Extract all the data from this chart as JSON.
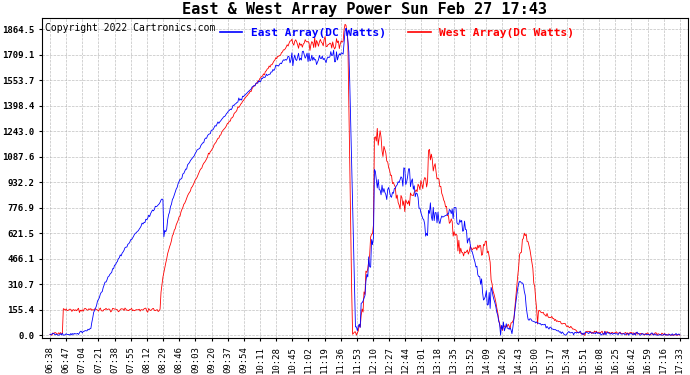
{
  "title": "East & West Array Power Sun Feb 27 17:43",
  "copyright": "Copyright 2022 Cartronics.com",
  "legend_east": "East Array(DC Watts)",
  "legend_west": "West Array(DC Watts)",
  "east_color": "blue",
  "west_color": "red",
  "background_color": "#ffffff",
  "grid_color": "#b0b0b0",
  "yticks": [
    0.0,
    155.4,
    310.7,
    466.1,
    621.5,
    776.9,
    932.2,
    1087.6,
    1243.0,
    1398.4,
    1553.7,
    1709.1,
    1864.5
  ],
  "ylim": [
    -20,
    1930
  ],
  "x_labels": [
    "06:38",
    "06:47",
    "07:04",
    "07:21",
    "07:38",
    "07:55",
    "08:12",
    "08:29",
    "08:46",
    "09:03",
    "09:20",
    "09:37",
    "09:54",
    "10:11",
    "10:28",
    "10:45",
    "11:02",
    "11:19",
    "11:36",
    "11:53",
    "12:10",
    "12:27",
    "12:44",
    "13:01",
    "13:18",
    "13:35",
    "13:52",
    "14:09",
    "14:26",
    "14:43",
    "15:00",
    "15:17",
    "15:34",
    "15:51",
    "16:08",
    "16:25",
    "16:42",
    "16:59",
    "17:16",
    "17:33"
  ],
  "title_fontsize": 11,
  "tick_fontsize": 6.5,
  "legend_fontsize": 8,
  "copyright_fontsize": 7
}
